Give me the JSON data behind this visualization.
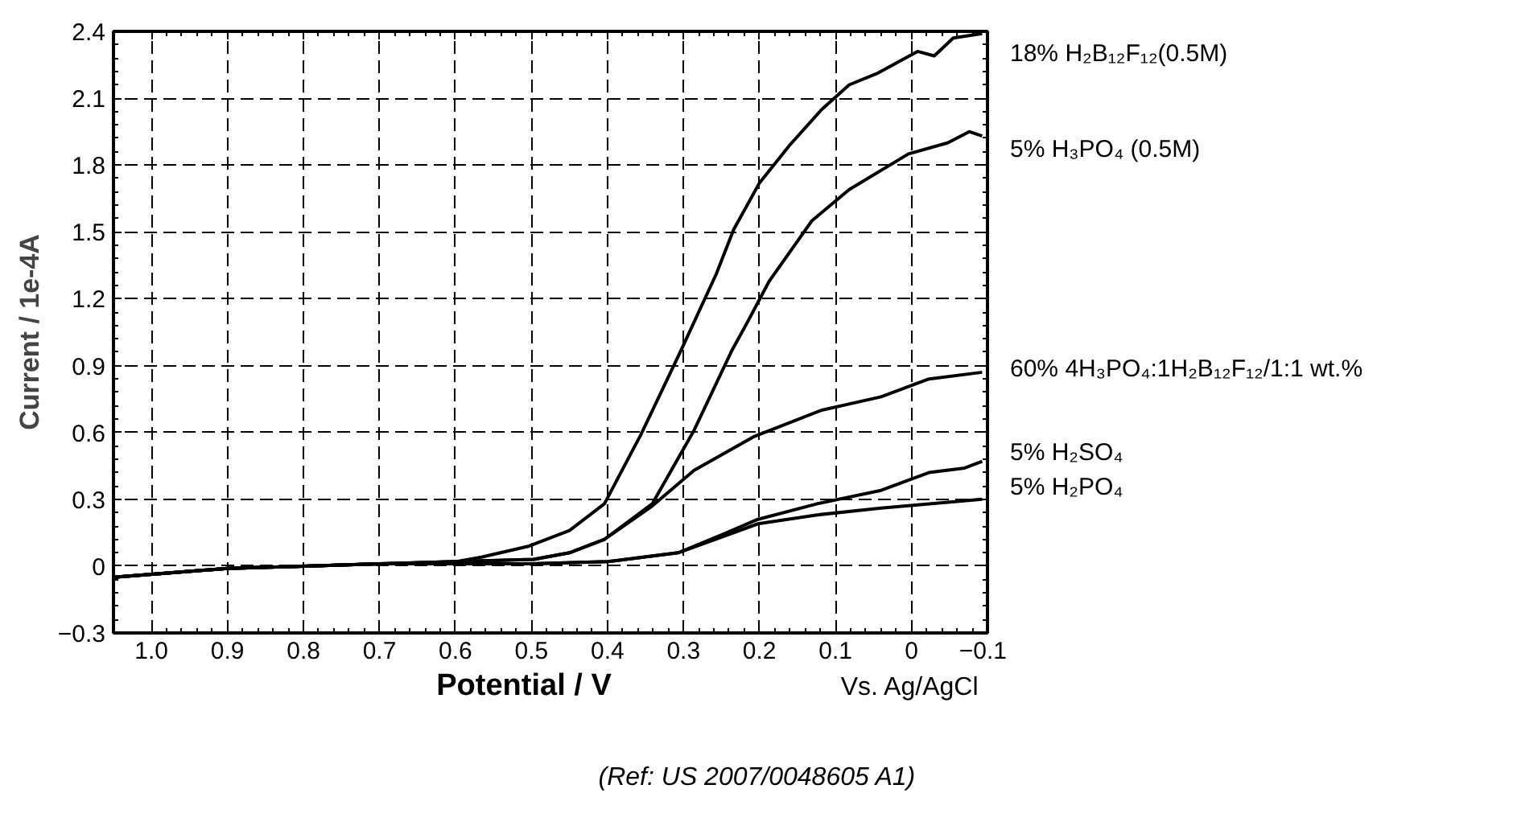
{
  "chart_data": {
    "type": "line",
    "xlabel": "Potential / V",
    "ylabel": "Current / 1e-4A",
    "xlim": [
      1.05,
      -0.1
    ],
    "ylim": [
      -0.3,
      2.4
    ],
    "xticks": [
      {
        "value": 1.0,
        "label": "1.0"
      },
      0.9,
      0.8,
      0.7,
      0.6,
      0.5,
      0.4,
      0.3,
      0.2,
      0.1,
      0,
      -0.1
    ],
    "yticks": [
      -0.3,
      {
        "value": 0,
        "label": "0"
      },
      0.3,
      0.6,
      0.9,
      1.2,
      1.5,
      1.8,
      2.1,
      2.4
    ],
    "grid": true,
    "legend": "right",
    "line_style": "solid",
    "marker": "none",
    "annotations": [
      "Vs. Ag/AgCl",
      "(Ref: US 2007/0048605 A1)"
    ],
    "series": [
      {
        "name": "18% H₂B₁₂F₁₂(0.5M)",
        "color": "#000000",
        "x": [
          1.05,
          0.9,
          0.8,
          0.7,
          0.6,
          0.566,
          0.503,
          0.45,
          0.404,
          0.356,
          0.303,
          0.257,
          0.234,
          0.2,
          0.16,
          0.118,
          0.082,
          0.046,
          -0.008,
          -0.03,
          -0.055,
          -0.093
        ],
        "values": [
          -0.05,
          -0.01,
          0.0,
          0.01,
          0.02,
          0.04,
          0.09,
          0.16,
          0.28,
          0.59,
          0.97,
          1.31,
          1.51,
          1.72,
          1.89,
          2.05,
          2.16,
          2.21,
          2.31,
          2.29,
          2.37,
          2.39
        ]
      },
      {
        "name": "5% H₃PO₄  (0.5M)",
        "color": "#000000",
        "x": [
          1.05,
          0.9,
          0.8,
          0.7,
          0.6,
          0.497,
          0.45,
          0.404,
          0.341,
          0.286,
          0.236,
          0.215,
          0.187,
          0.131,
          0.082,
          0.004,
          -0.048,
          -0.076,
          -0.093
        ],
        "values": [
          -0.05,
          -0.01,
          0.0,
          0.01,
          0.02,
          0.03,
          0.06,
          0.12,
          0.28,
          0.61,
          0.97,
          1.1,
          1.28,
          1.55,
          1.69,
          1.85,
          1.9,
          1.95,
          1.93
        ]
      },
      {
        "name": "60% 4H₃PO₄:1H₂B₁₂F₁₂/1:1 wt.%",
        "color": "#000000",
        "x": [
          1.05,
          0.9,
          0.8,
          0.7,
          0.6,
          0.497,
          0.45,
          0.404,
          0.341,
          0.286,
          0.208,
          0.118,
          0.04,
          -0.023,
          -0.093
        ],
        "values": [
          -0.05,
          -0.01,
          0.0,
          0.01,
          0.02,
          0.03,
          0.06,
          0.12,
          0.27,
          0.43,
          0.58,
          0.7,
          0.76,
          0.84,
          0.87
        ]
      },
      {
        "name": "5% H₂SO₄",
        "color": "#000000",
        "x": [
          1.05,
          0.9,
          0.8,
          0.7,
          0.6,
          0.5,
          0.4,
          0.307,
          0.25,
          0.202,
          0.124,
          0.04,
          -0.023,
          -0.07,
          -0.093
        ],
        "values": [
          -0.05,
          -0.01,
          0.0,
          0.01,
          0.01,
          0.01,
          0.02,
          0.06,
          0.14,
          0.21,
          0.28,
          0.34,
          0.42,
          0.44,
          0.47
        ]
      },
      {
        "name": "5% H₂PO₄",
        "color": "#000000",
        "x": [
          1.05,
          0.9,
          0.8,
          0.7,
          0.6,
          0.5,
          0.4,
          0.307,
          0.25,
          0.202,
          0.124,
          0.04,
          -0.093
        ],
        "values": [
          -0.05,
          -0.01,
          0.0,
          0.01,
          0.01,
          0.01,
          0.02,
          0.06,
          0.13,
          0.19,
          0.23,
          0.26,
          0.3
        ]
      }
    ]
  }
}
